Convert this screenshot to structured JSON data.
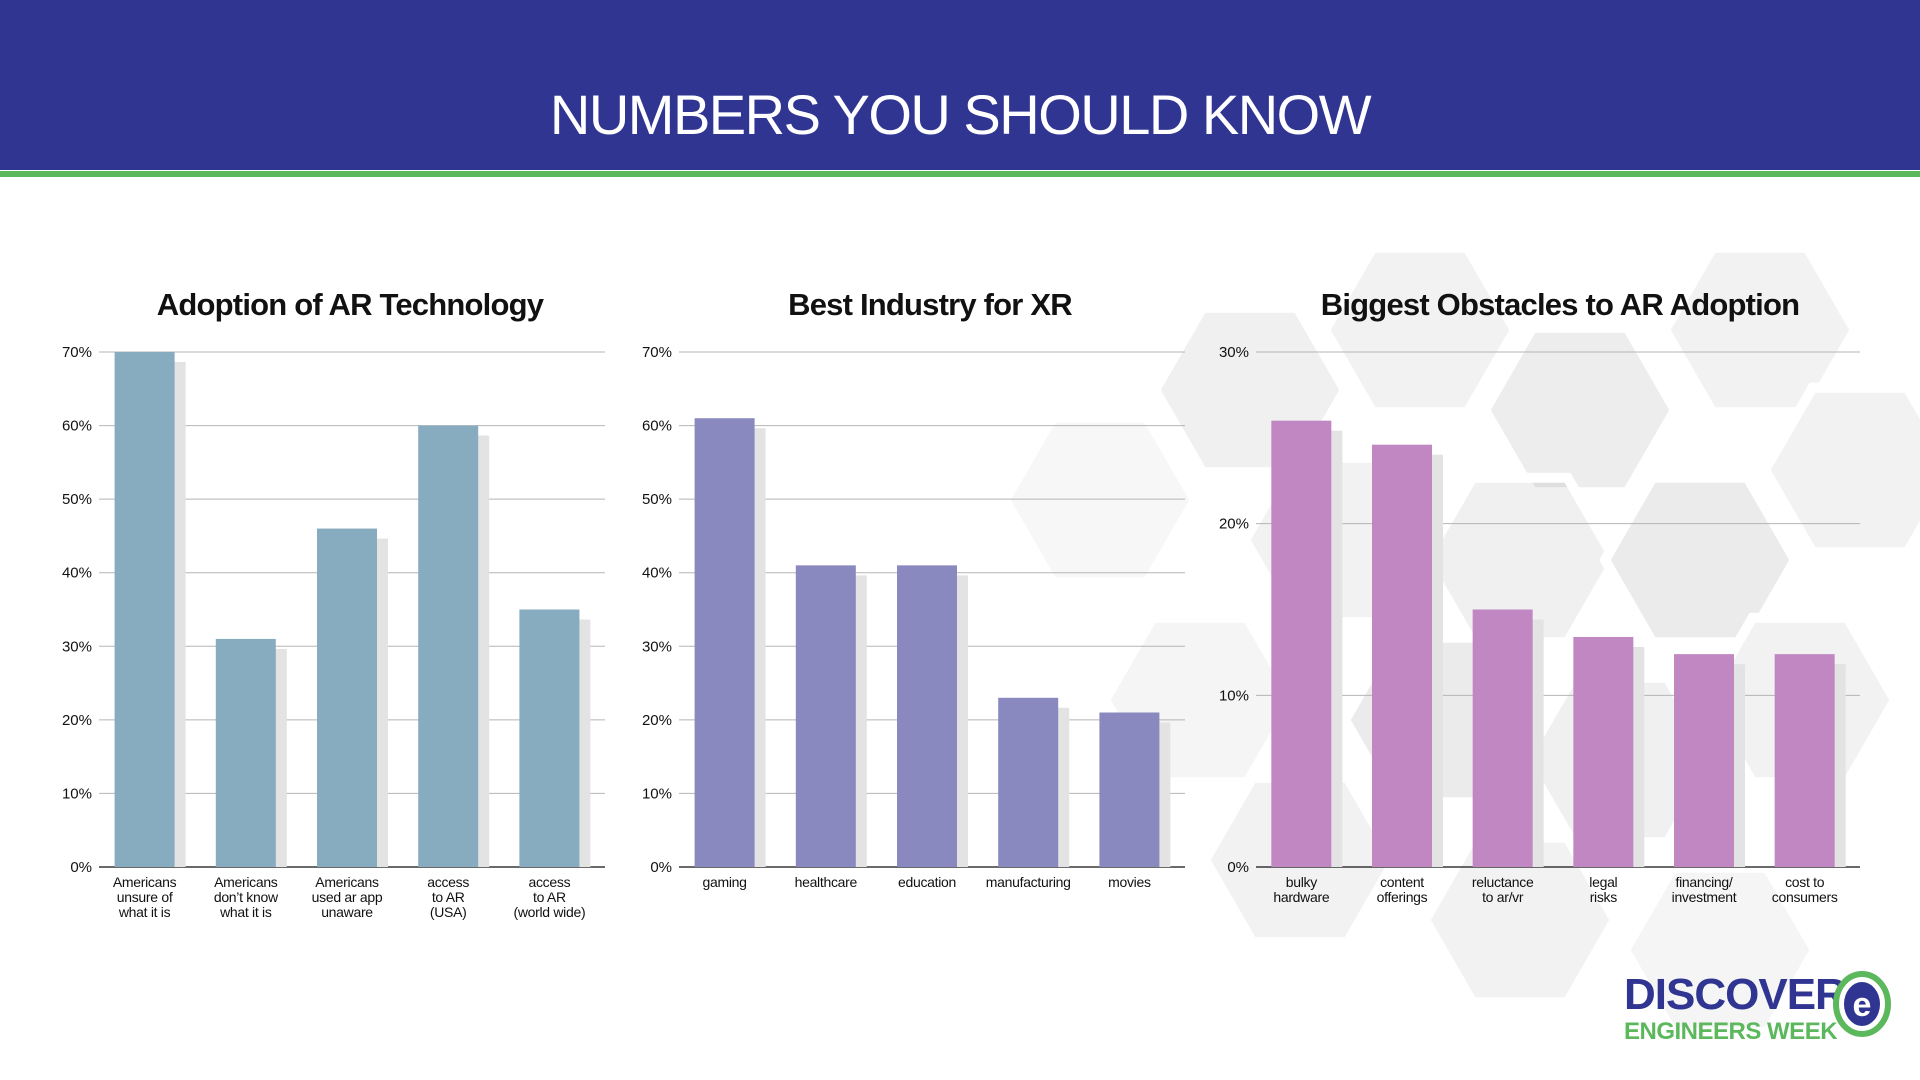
{
  "header": {
    "title": "NUMBERS YOU SHOULD KNOW"
  },
  "colors": {
    "header_bg": "#303592",
    "stripe": "#5cb85c",
    "bar_adoption": "#87abbf",
    "bar_industry": "#8988bf",
    "bar_obstacles": "#c187c2",
    "bar_shadow": "#e3e3e3",
    "grid": "#b5b5b5"
  },
  "chart_data": [
    {
      "type": "bar",
      "title": "Adoption of AR Technology",
      "xlabel": "",
      "ylabel": "",
      "categories": [
        [
          "Americans",
          "unsure of",
          "what it is"
        ],
        [
          "Americans",
          "don’t know",
          "what it is"
        ],
        [
          "Americans",
          "used ar app",
          "unaware"
        ],
        [
          "access",
          "to AR",
          "(USA)"
        ],
        [
          "access",
          "to AR",
          "(world wide)"
        ]
      ],
      "values": [
        70,
        31,
        46,
        60,
        35
      ],
      "ylim": [
        0,
        70
      ],
      "yticks": [
        0,
        10,
        20,
        30,
        40,
        50,
        60,
        70
      ],
      "tick_labels": [
        "0%",
        "10%",
        "20%",
        "30%",
        "40%",
        "50%",
        "60%",
        "70%"
      ],
      "grid": true,
      "color": "#87abbf"
    },
    {
      "type": "bar",
      "title": "Best Industry for XR",
      "xlabel": "",
      "ylabel": "",
      "categories": [
        [
          "gaming"
        ],
        [
          "healthcare"
        ],
        [
          "education"
        ],
        [
          "manufacturing"
        ],
        [
          "movies"
        ]
      ],
      "values": [
        61,
        41,
        41,
        23,
        21
      ],
      "ylim": [
        0,
        70
      ],
      "yticks": [
        0,
        10,
        20,
        30,
        40,
        50,
        60,
        70
      ],
      "tick_labels": [
        "0%",
        "10%",
        "20%",
        "30%",
        "40%",
        "50%",
        "60%",
        "70%"
      ],
      "grid": true,
      "color": "#8988bf"
    },
    {
      "type": "bar",
      "title": "Biggest Obstacles to AR Adoption",
      "xlabel": "",
      "ylabel": "",
      "categories": [
        [
          "bulky",
          "hardware"
        ],
        [
          "content",
          "offerings"
        ],
        [
          "reluctance",
          "to ar/vr"
        ],
        [
          "legal",
          "risks"
        ],
        [
          "financing/",
          "investment"
        ],
        [
          "cost to",
          "consumers"
        ]
      ],
      "values": [
        26,
        24.6,
        15,
        13.4,
        12.4,
        12.4
      ],
      "ylim": [
        0,
        30
      ],
      "yticks": [
        0,
        10,
        20,
        30
      ],
      "tick_labels": [
        "0%",
        "10%",
        "20%",
        "30%"
      ],
      "grid": true,
      "color": "#c187c2"
    }
  ],
  "logo": {
    "line1": "DISCOVER",
    "line2": "ENGINEERS WEEK",
    "mark_letter": "e"
  }
}
